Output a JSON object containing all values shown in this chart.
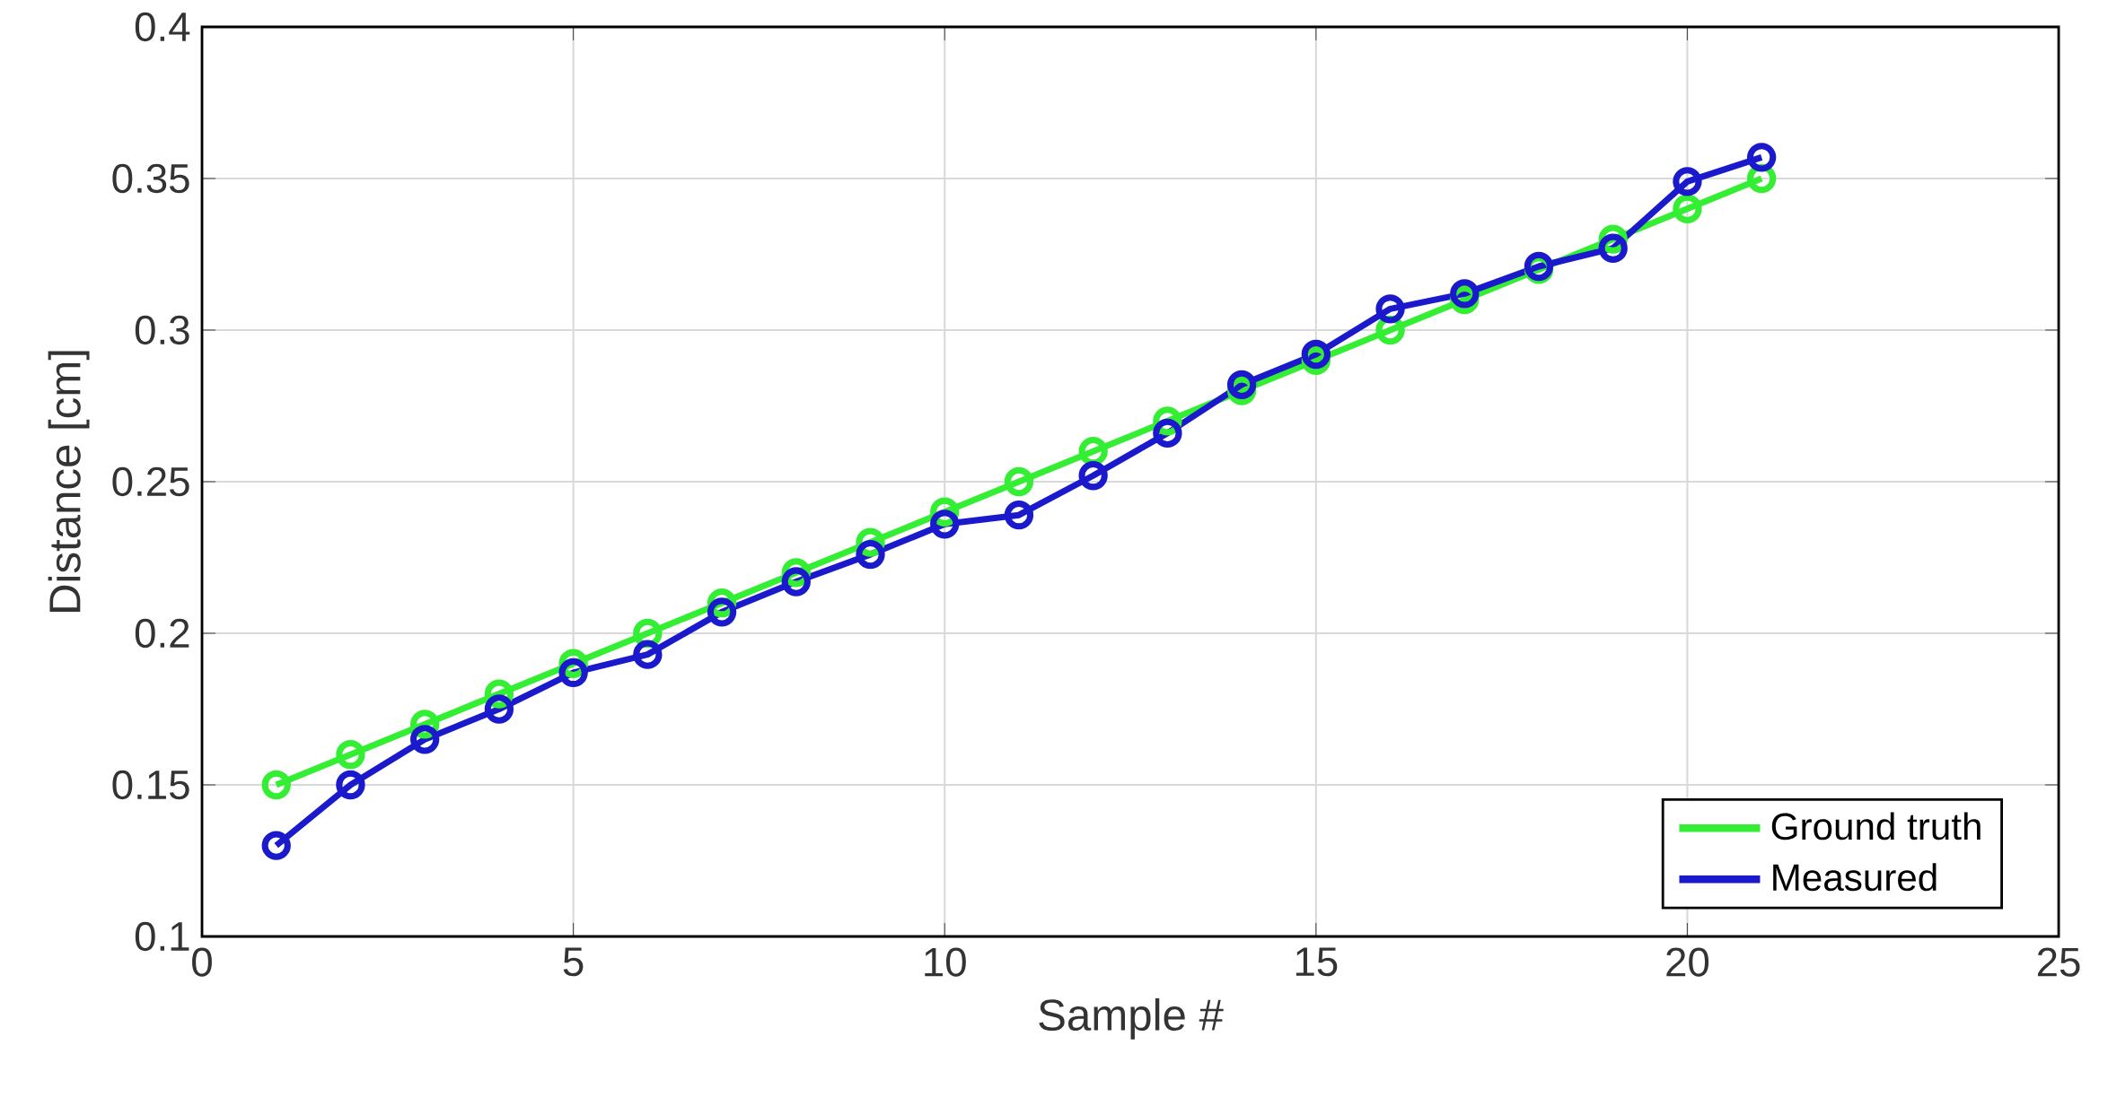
{
  "chart_data": {
    "type": "line",
    "xlabel": "Sample #",
    "ylabel": "Distance [cm]",
    "x": [
      1,
      2,
      3,
      4,
      5,
      6,
      7,
      8,
      9,
      10,
      11,
      12,
      13,
      14,
      15,
      16,
      17,
      18,
      19,
      20,
      21
    ],
    "series": [
      {
        "name": "Ground truth",
        "color": "#33ee33",
        "values": [
          0.15,
          0.16,
          0.17,
          0.18,
          0.19,
          0.2,
          0.21,
          0.22,
          0.23,
          0.24,
          0.25,
          0.26,
          0.27,
          0.28,
          0.29,
          0.3,
          0.31,
          0.32,
          0.33,
          0.34,
          0.35
        ]
      },
      {
        "name": "Measured",
        "color": "#1a1acc",
        "values": [
          0.13,
          0.15,
          0.165,
          0.175,
          0.187,
          0.193,
          0.207,
          0.217,
          0.226,
          0.236,
          0.239,
          0.252,
          0.266,
          0.282,
          0.292,
          0.307,
          0.312,
          0.321,
          0.327,
          0.349,
          0.357
        ]
      }
    ],
    "xlim": [
      0,
      25
    ],
    "ylim": [
      0.1,
      0.4
    ],
    "xticks": [
      0,
      5,
      10,
      15,
      20,
      25
    ],
    "yticks": [
      0.1,
      0.15,
      0.2,
      0.25,
      0.3,
      0.35,
      0.4
    ],
    "grid": true,
    "legend": "bottom right",
    "marker": "circle",
    "line_style": "solid"
  }
}
